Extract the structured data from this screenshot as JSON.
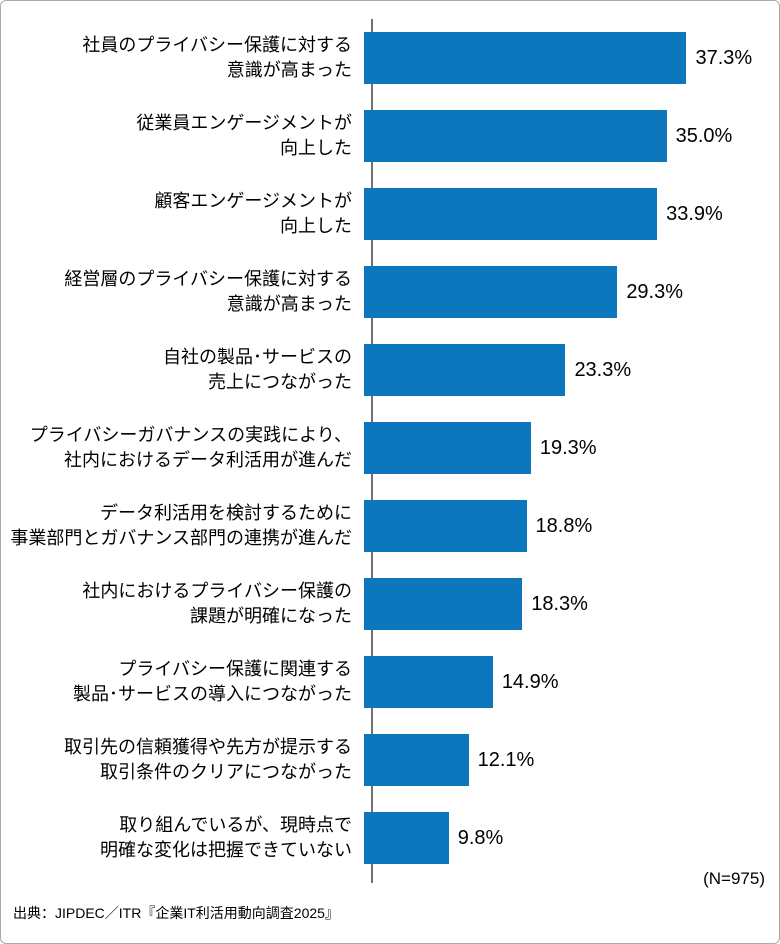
{
  "chart_data": {
    "type": "bar",
    "orientation": "horizontal",
    "title": "",
    "xlabel": "",
    "ylabel": "",
    "xlim": [
      0,
      48
    ],
    "grid": false,
    "legend": "none",
    "bar_color": "#0D77BE",
    "axis_color": "#707070",
    "n_label": "(N=975)",
    "source": "出典：JIPDEC／ITR『企業IT利活用動向調査2025』",
    "categories": [
      "社員のプライバシー保護に対する意識が高まった",
      "従業員エンゲージメントが向上した",
      "顧客エンゲージメントが向上した",
      "経営層のプライバシー保護に対する意識が高まった",
      "自社の製品･サービスの売上につながった",
      "プライバシーガバナンスの実践により、社内におけるデータ利活用が進んだ",
      "データ利活用を検討するために事業部門とガバナンス部門の連携が進んだ",
      "社内におけるプライバシー保護の課題が明確になった",
      "プライバシー保護に関連する製品･サービスの導入につながった",
      "取引先の信頼獲得や先方が提示する取引条件のクリアにつながった",
      "取り組んでいるが、現時点で明確な変化は把握できていない"
    ],
    "values": [
      37.3,
      35.0,
      33.9,
      29.3,
      23.3,
      19.3,
      18.8,
      18.3,
      14.9,
      12.1,
      9.8
    ],
    "items": [
      {
        "label_lines": [
          "社員のプライバシー保護に対する",
          "意識が高まった"
        ],
        "value": 37.3,
        "value_label": "37.3%"
      },
      {
        "label_lines": [
          "従業員エンゲージメントが",
          "向上した"
        ],
        "value": 35.0,
        "value_label": "35.0%"
      },
      {
        "label_lines": [
          "顧客エンゲージメントが",
          "向上した"
        ],
        "value": 33.9,
        "value_label": "33.9%"
      },
      {
        "label_lines": [
          "経営層のプライバシー保護に対する",
          "意識が高まった"
        ],
        "value": 29.3,
        "value_label": "29.3%"
      },
      {
        "label_lines": [
          "自社の製品･サービスの",
          "売上につながった"
        ],
        "value": 23.3,
        "value_label": "23.3%"
      },
      {
        "label_lines": [
          "プライバシーガバナンスの実践により、",
          "社内におけるデータ利活用が進んだ"
        ],
        "value": 19.3,
        "value_label": "19.3%"
      },
      {
        "label_lines": [
          "データ利活用を検討するために",
          "事業部門とガバナンス部門の連携が進んだ"
        ],
        "value": 18.8,
        "value_label": "18.8%"
      },
      {
        "label_lines": [
          "社内におけるプライバシー保護の",
          "課題が明確になった"
        ],
        "value": 18.3,
        "value_label": "18.3%"
      },
      {
        "label_lines": [
          "プライバシー保護に関連する",
          "製品･サービスの導入につながった"
        ],
        "value": 14.9,
        "value_label": "14.9%"
      },
      {
        "label_lines": [
          "取引先の信頼獲得や先方が提示する",
          "取引条件のクリアにつながった"
        ],
        "value": 12.1,
        "value_label": "12.1%"
      },
      {
        "label_lines": [
          "取り組んでいるが、現時点で",
          "明確な変化は把握できていない"
        ],
        "value": 9.8,
        "value_label": "9.8%"
      }
    ]
  }
}
